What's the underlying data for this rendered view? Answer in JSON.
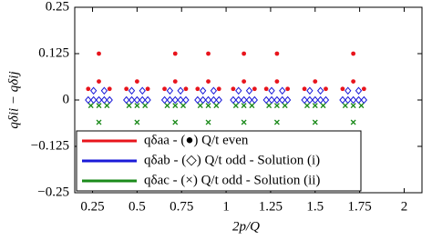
{
  "chart_data": {
    "type": "scatter",
    "xlabel": "2p/Q",
    "ylabel": "qδii − qδij",
    "xlim": [
      0.15,
      2.1
    ],
    "ylim": [
      -0.25,
      0.25
    ],
    "xticks": [
      0.25,
      0.5,
      0.75,
      1,
      1.25,
      1.5,
      1.75,
      2
    ],
    "yticks": [
      0.25,
      0.125,
      0,
      {
        "value": -0.125,
        "label": "−0.125"
      },
      {
        "value": -0.25,
        "label": "−0.25"
      }
    ],
    "legend": "lower left",
    "series": [
      {
        "name": "qδaa - (●) Q/t even",
        "color": "#e8141c",
        "marker": "circle",
        "x": [
          0.2857,
          0.7143,
          0.9,
          1.1,
          1.2857,
          1.7143,
          0.2857,
          0.5,
          0.7143,
          0.9,
          1.1,
          1.2857,
          1.5,
          1.7143,
          0.2257,
          0.44,
          0.6543,
          0.84,
          1.04,
          1.2257,
          1.44,
          1.6543,
          0.3457,
          0.56,
          0.7743,
          0.96,
          1.16,
          1.3457,
          1.56,
          1.7743
        ],
        "values": [
          0.125,
          0.125,
          0.125,
          0.125,
          0.125,
          0.125,
          0.05,
          0.05,
          0.05,
          0.05,
          0.05,
          0.05,
          0.05,
          0.05,
          0.03,
          0.03,
          0.03,
          0.03,
          0.03,
          0.03,
          0.03,
          0.03,
          0.03,
          0.03,
          0.03,
          0.03,
          0.03,
          0.03,
          0.03,
          0.03
        ]
      },
      {
        "name": "qδab - (◇) Q/t odd - Solution (i)",
        "color": "#1a1ad8",
        "marker": "diamond",
        "x": [
          0.2257,
          0.44,
          0.6543,
          0.84,
          1.04,
          1.2257,
          1.44,
          1.6543,
          0.2557,
          0.47,
          0.6843,
          0.87,
          1.07,
          1.2557,
          1.47,
          1.6843,
          0.2857,
          0.5,
          0.7143,
          0.9,
          1.1,
          1.2857,
          1.5,
          1.7143,
          0.3157,
          0.53,
          0.7443,
          0.93,
          1.13,
          1.3157,
          1.53,
          1.7443,
          0.3457,
          0.56,
          0.7743,
          0.96,
          1.16,
          1.3457,
          1.56,
          1.7743,
          0.2557,
          0.47,
          0.6843,
          0.87,
          1.07,
          1.2557,
          1.47,
          1.6843,
          0.3157,
          0.53,
          0.7443,
          0.93,
          1.13,
          1.3157,
          1.53,
          1.7443
        ],
        "values": [
          0,
          0,
          0,
          0,
          0,
          0,
          0,
          0,
          0,
          0,
          0,
          0,
          0,
          0,
          0,
          0,
          0,
          0,
          0,
          0,
          0,
          0,
          0,
          0,
          0,
          0,
          0,
          0,
          0,
          0,
          0,
          0,
          0,
          0,
          0,
          0,
          0,
          0,
          0,
          0,
          0.025,
          0.025,
          0.025,
          0.025,
          0.025,
          0.025,
          0.025,
          0.025,
          0.025,
          0.025,
          0.025,
          0.025,
          0.025,
          0.025,
          0.025,
          0.025
        ]
      },
      {
        "name": "qδac - (×) Q/t odd - Solution (ii)",
        "color": "#1a8a1a",
        "marker": "cross",
        "x": [
          0.2407,
          0.455,
          0.6693,
          0.855,
          1.055,
          1.2407,
          1.455,
          1.6693,
          0.2857,
          0.5,
          0.7143,
          0.9,
          1.1,
          1.2857,
          1.5,
          1.7143,
          0.3307,
          0.545,
          0.7593,
          0.945,
          1.145,
          1.3307,
          1.545,
          1.7593,
          0.2857,
          0.5,
          0.7143,
          0.9,
          1.1,
          1.2857,
          1.5,
          1.7143
        ],
        "values": [
          -0.015,
          -0.015,
          -0.015,
          -0.015,
          -0.015,
          -0.015,
          -0.015,
          -0.015,
          -0.015,
          -0.015,
          -0.015,
          -0.015,
          -0.015,
          -0.015,
          -0.015,
          -0.015,
          -0.015,
          -0.015,
          -0.015,
          -0.015,
          -0.015,
          -0.015,
          -0.015,
          -0.015,
          -0.06,
          -0.06,
          -0.06,
          -0.06,
          -0.06,
          -0.06,
          -0.06,
          -0.06
        ]
      }
    ]
  }
}
